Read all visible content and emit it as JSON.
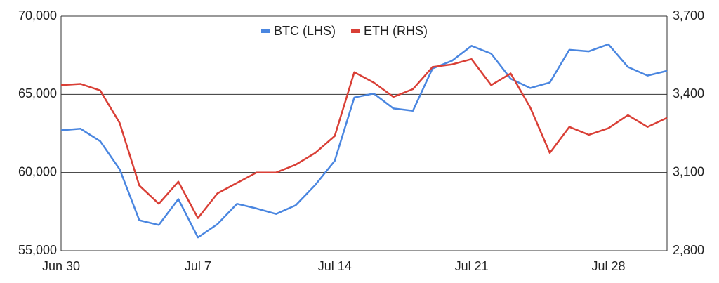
{
  "chart_data": {
    "type": "line",
    "categories": [
      "Jun 30",
      null,
      null,
      null,
      null,
      null,
      null,
      "Jul 7",
      null,
      null,
      null,
      null,
      null,
      null,
      "Jul 14",
      null,
      null,
      null,
      null,
      null,
      null,
      "Jul 21",
      null,
      null,
      null,
      null,
      null,
      null,
      "Jul 28",
      null,
      null,
      null
    ],
    "series": [
      {
        "name": "BTC (LHS)",
        "color": "#4a86e0",
        "values": [
          62700,
          62800,
          62000,
          60200,
          56950,
          56650,
          58300,
          55850,
          56700,
          58000,
          57700,
          57350,
          57900,
          59200,
          60750,
          64800,
          65050,
          64100,
          63950,
          66650,
          67150,
          68100,
          67600,
          66000,
          65400,
          65750,
          67850,
          67750,
          68200,
          66750,
          66200,
          66500
        ]
      },
      {
        "name": "ETH (RHS)",
        "color": "#d93f36",
        "axis": "y2",
        "values": [
          3435,
          3440,
          3415,
          3290,
          3050,
          2980,
          3065,
          2925,
          3020,
          3060,
          3100,
          3100,
          3130,
          3175,
          3240,
          3485,
          3445,
          3390,
          3420,
          3505,
          3515,
          3535,
          3435,
          3480,
          3350,
          3175,
          3275,
          3245,
          3270,
          3320,
          3275,
          3310
        ]
      }
    ],
    "ylim": [
      55000,
      70000
    ],
    "yticks": [
      {
        "value": 55000,
        "label": "55,000"
      },
      {
        "value": 60000,
        "label": "60,000"
      },
      {
        "value": 65000,
        "label": "65,000"
      },
      {
        "value": 70000,
        "label": "70,000"
      }
    ],
    "y2lim": [
      2800,
      3700
    ],
    "y2ticks": [
      {
        "value": 2800,
        "label": "2,800"
      },
      {
        "value": 3100,
        "label": "3,100"
      },
      {
        "value": 3400,
        "label": "3,400"
      },
      {
        "value": 3700,
        "label": "3,700"
      }
    ],
    "grid": true,
    "legend": "top"
  }
}
